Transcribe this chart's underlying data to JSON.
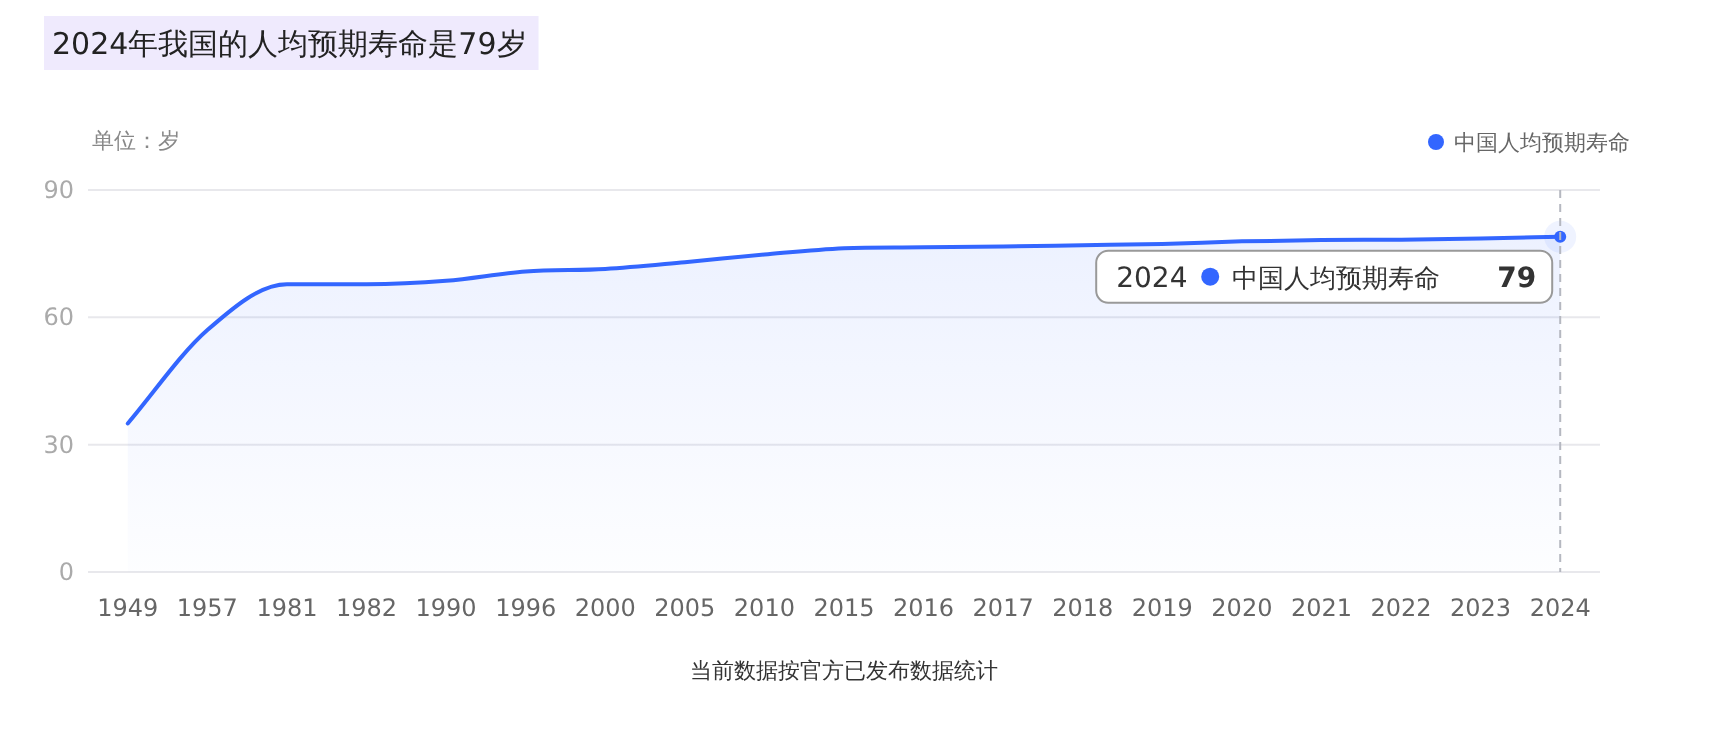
{
  "chart_data": {
    "type": "area",
    "title": "2024年我国的人均预期寿命是79岁",
    "ylabel": "单位：岁",
    "categories": [
      "1949",
      "1957",
      "1981",
      "1982",
      "1990",
      "1996",
      "2000",
      "2005",
      "2010",
      "2015",
      "2016",
      "2017",
      "2018",
      "2019",
      "2020",
      "2021",
      "2022",
      "2023",
      "2024"
    ],
    "series": [
      {
        "name": "中国人均预期寿命",
        "color": "#3366ff",
        "values": [
          35,
          57,
          67.8,
          67.8,
          68.6,
          70.8,
          71.4,
          73,
          74.8,
          76.3,
          76.5,
          76.7,
          77,
          77.3,
          77.9,
          78.2,
          78.3,
          78.6,
          79
        ],
        "value_labels": [
          null,
          null,
          null,
          null,
          null,
          null,
          null,
          null,
          null,
          null,
          null,
          null,
          null,
          null,
          null,
          null,
          null,
          null,
          "79"
        ]
      }
    ],
    "ylim": [
      0,
      90
    ],
    "yticks": [
      0,
      30,
      60,
      90
    ],
    "grid": "y",
    "legend": "top right",
    "marker": "none",
    "line_style": "solid",
    "ref_lines": [
      {
        "axis": "x",
        "value": "2024",
        "color": "#b5b8c0",
        "line_style": "dashed"
      }
    ],
    "annotations": [
      "当前数据按官方已发布数据统计"
    ]
  }
}
